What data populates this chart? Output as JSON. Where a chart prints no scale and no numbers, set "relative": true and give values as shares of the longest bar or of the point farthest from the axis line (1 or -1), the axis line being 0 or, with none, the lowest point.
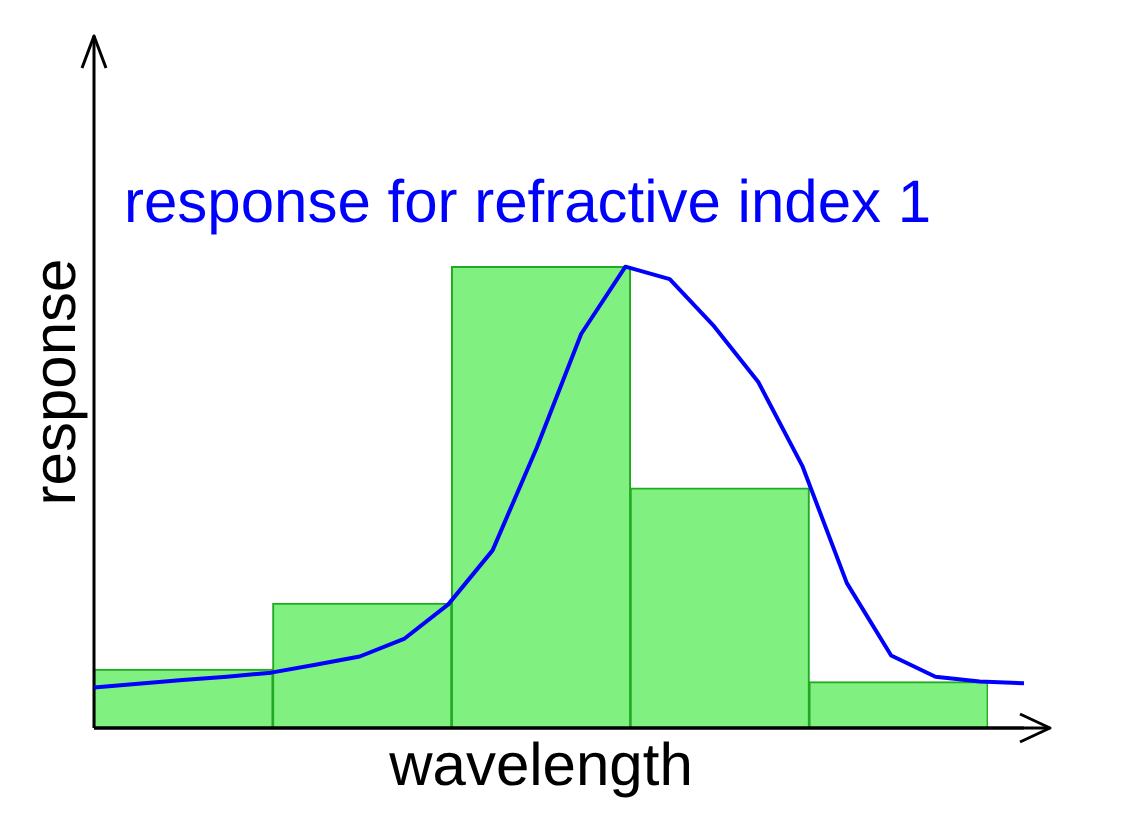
{
  "chart_data": [
    {
      "type": "bar",
      "relative": true,
      "xlabel": "wavelength",
      "ylabel": "response",
      "categories": [
        null,
        null,
        null,
        null,
        null
      ],
      "grid": false,
      "legend": false,
      "color": "#80f080",
      "values": [
        0.127,
        0.27,
        1,
        0.52,
        0.1
      ]
    },
    {
      "type": "line",
      "relative": true,
      "categories": [
        null,
        null,
        null,
        null,
        null,
        null,
        null,
        null,
        null,
        null,
        null,
        null,
        null,
        null,
        null,
        null,
        null,
        null,
        null,
        null,
        null,
        null
      ],
      "grid": false,
      "legend": false,
      "series": [
        {
          "name": "response for refractive index 1",
          "color": "#0000ff",
          "values": [
            0.088,
            0.096,
            0.104,
            0.111,
            0.12,
            0.137,
            0.155,
            0.193,
            0.268,
            0.385,
            0.608,
            0.854,
            1,
            0.973,
            0.871,
            0.75,
            0.567,
            0.314,
            0.157,
            0.111,
            0.101,
            0.097
          ]
        }
      ]
    }
  ]
}
